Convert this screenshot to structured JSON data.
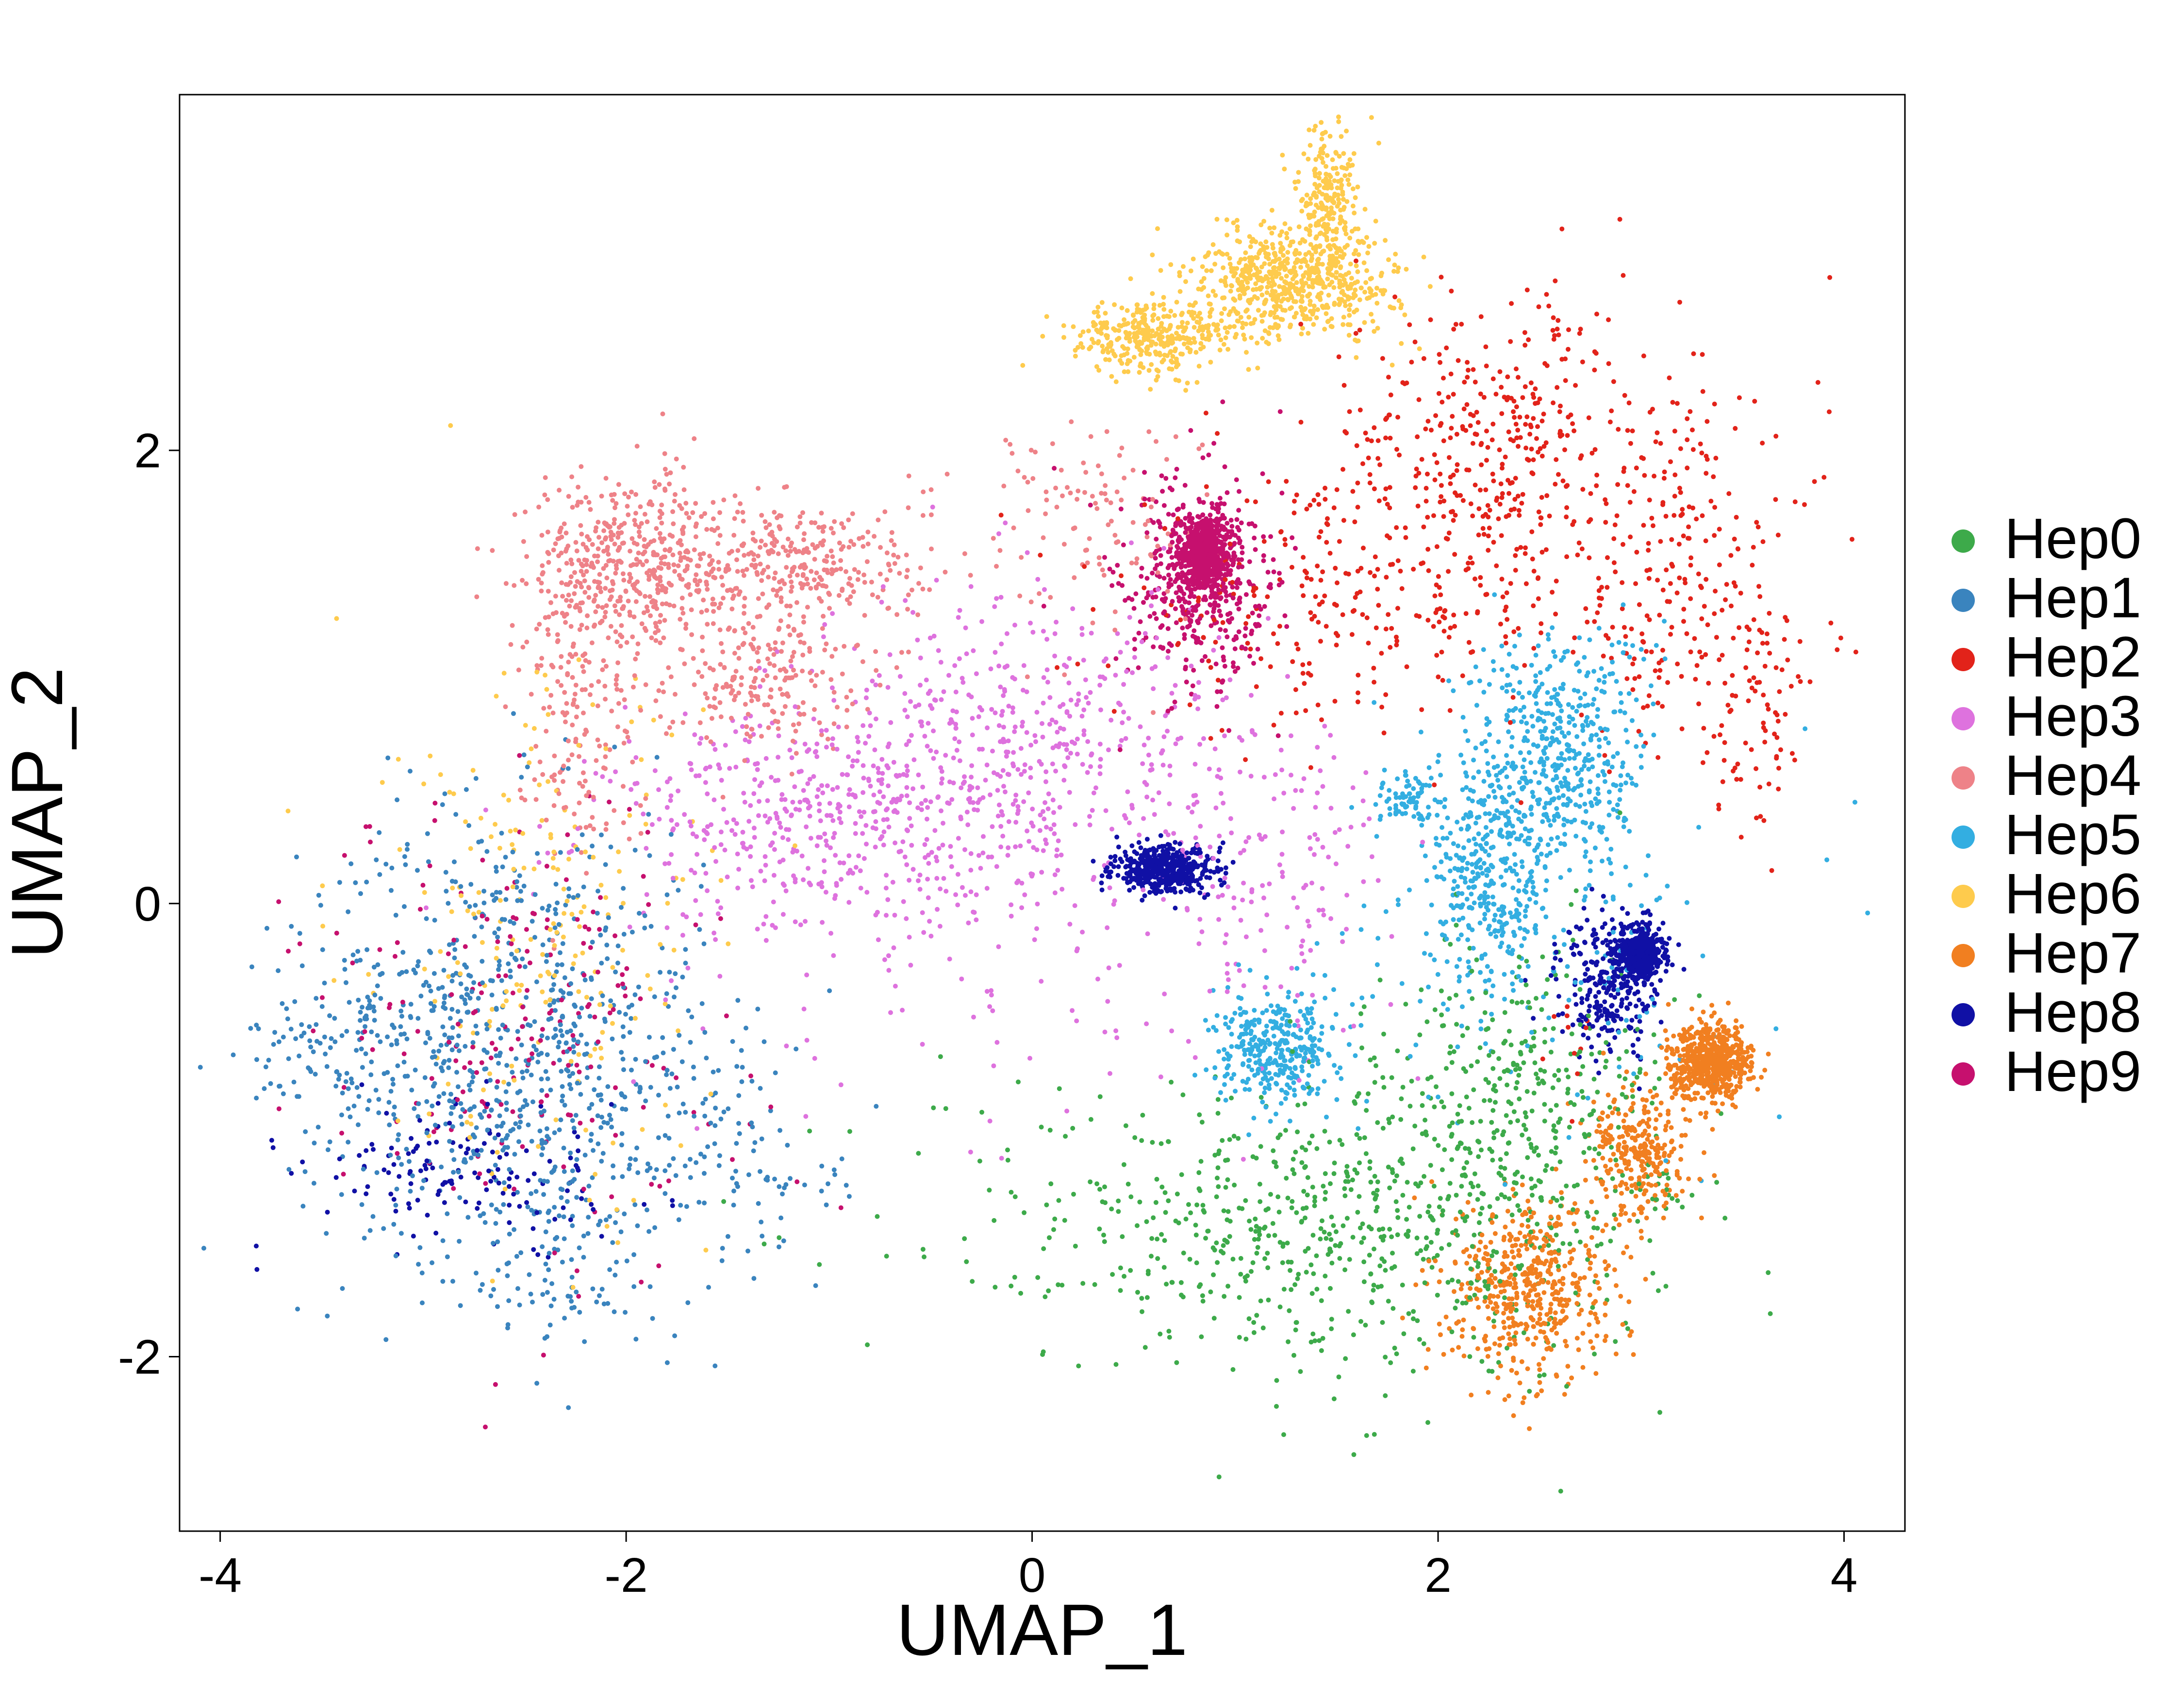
{
  "chart_data": {
    "type": "scatter",
    "title": "",
    "xlabel": "UMAP_1",
    "ylabel": "UMAP_2",
    "xlim": [
      -4.2,
      4.3
    ],
    "ylim": [
      -2.77,
      3.57
    ],
    "xticks": [
      -4,
      -2,
      0,
      2,
      4
    ],
    "xtick_labels": [
      "-4",
      "-2",
      "0",
      "2",
      "4"
    ],
    "yticks": [
      -2,
      0,
      2
    ],
    "ytick_labels": [
      "-2",
      "0",
      "2"
    ],
    "grid": false,
    "legend_position": "right",
    "series": [
      {
        "name": "Hep0",
        "color": "#3DAA4A",
        "clusters": [
          [
            2.1,
            -1.3,
            0.55,
            0.45,
            0.32
          ],
          [
            1.2,
            -1.45,
            0.55,
            0.28,
            0.22
          ],
          [
            2.4,
            -0.8,
            0.3,
            0.35,
            0.14
          ],
          [
            0.2,
            -1.4,
            0.55,
            0.35,
            0.05
          ],
          [
            3.1,
            -1.3,
            0.08,
            0.08,
            0.01
          ]
        ]
      },
      {
        "name": "Hep1",
        "color": "#3A84BE",
        "clusters": [
          [
            -2.6,
            -0.6,
            0.5,
            0.5,
            0.6
          ],
          [
            -3.4,
            -0.65,
            0.22,
            0.2,
            0.05
          ],
          [
            -2.3,
            -1.5,
            0.18,
            0.25,
            0.06
          ],
          [
            -1.6,
            -1.1,
            0.3,
            0.35,
            0.06
          ],
          [
            -1.2,
            -1.2,
            0.2,
            0.12,
            0.02
          ]
        ]
      },
      {
        "name": "Hep2",
        "color": "#E2231A",
        "clusters": [
          [
            2.3,
            2.0,
            0.45,
            0.35,
            0.3
          ],
          [
            3.2,
            1.4,
            0.35,
            0.4,
            0.16
          ],
          [
            1.5,
            1.3,
            0.55,
            0.25,
            0.18
          ],
          [
            3.6,
            0.8,
            0.12,
            0.25,
            0.05
          ],
          [
            2.65,
            -0.55,
            0.05,
            0.12,
            0.008
          ]
        ]
      },
      {
        "name": "Hep3",
        "color": "#DE72DE",
        "clusters": [
          [
            0.0,
            0.7,
            0.55,
            0.35,
            0.35
          ],
          [
            -1.0,
            0.35,
            0.55,
            0.25,
            0.35
          ],
          [
            1.2,
            0.1,
            0.3,
            0.35,
            0.1
          ],
          [
            -0.4,
            -0.3,
            0.8,
            0.4,
            0.05
          ]
        ]
      },
      {
        "name": "Hep4",
        "color": "#EE8288",
        "clusters": [
          [
            -2.0,
            1.5,
            0.25,
            0.2,
            0.3
          ],
          [
            -1.2,
            1.5,
            0.35,
            0.15,
            0.25
          ],
          [
            -1.35,
            1.0,
            0.25,
            0.15,
            0.15
          ],
          [
            -2.25,
            0.9,
            0.15,
            0.35,
            0.12
          ],
          [
            0.3,
            1.7,
            0.3,
            0.25,
            0.08
          ]
        ]
      },
      {
        "name": "Hep5",
        "color": "#33AEE1",
        "clusters": [
          [
            2.6,
            0.65,
            0.22,
            0.28,
            0.35
          ],
          [
            2.25,
            0.1,
            0.15,
            0.25,
            0.25
          ],
          [
            1.2,
            -0.65,
            0.15,
            0.12,
            0.25
          ],
          [
            1.85,
            0.45,
            0.08,
            0.06,
            0.05
          ],
          [
            2.5,
            -0.1,
            0.5,
            0.5,
            0.1
          ]
        ]
      },
      {
        "name": "Hep6",
        "color": "#FECB4D",
        "clusters": [
          [
            1.3,
            2.75,
            0.25,
            0.12,
            0.45
          ],
          [
            0.6,
            2.5,
            0.2,
            0.08,
            0.25
          ],
          [
            1.45,
            3.1,
            0.08,
            0.15,
            0.15
          ],
          [
            -2.4,
            -0.2,
            0.4,
            0.6,
            0.15
          ]
        ]
      },
      {
        "name": "Hep7",
        "color": "#F17F20",
        "clusters": [
          [
            3.35,
            -0.7,
            0.1,
            0.08,
            0.45
          ],
          [
            2.45,
            -1.7,
            0.2,
            0.2,
            0.35
          ],
          [
            3.0,
            -1.1,
            0.12,
            0.15,
            0.2
          ]
        ]
      },
      {
        "name": "Hep8",
        "color": "#1010A5",
        "clusters": [
          [
            3.0,
            -0.22,
            0.05,
            0.06,
            0.35
          ],
          [
            0.65,
            0.15,
            0.12,
            0.05,
            0.35
          ],
          [
            2.85,
            -0.35,
            0.12,
            0.15,
            0.2
          ],
          [
            -2.8,
            -1.2,
            0.4,
            0.15,
            0.1
          ]
        ]
      },
      {
        "name": "Hep9",
        "color": "#C6106E",
        "clusters": [
          [
            0.85,
            1.55,
            0.06,
            0.08,
            0.55
          ],
          [
            0.8,
            1.4,
            0.2,
            0.25,
            0.3
          ],
          [
            -2.5,
            -0.6,
            0.5,
            0.5,
            0.15
          ]
        ]
      }
    ]
  }
}
